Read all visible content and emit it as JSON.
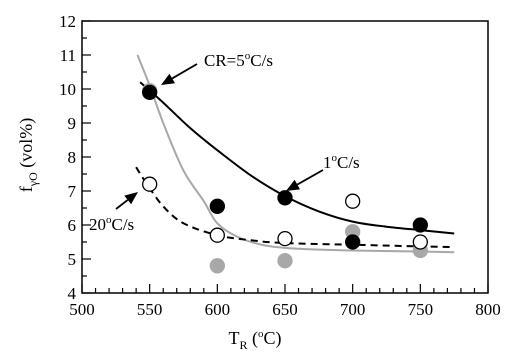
{
  "chart_data": {
    "type": "scatter",
    "xlim": [
      500,
      800
    ],
    "ylim": [
      4,
      12
    ],
    "x_ticks": [
      500,
      550,
      600,
      650,
      700,
      750,
      800
    ],
    "y_ticks": [
      4,
      5,
      6,
      7,
      8,
      9,
      10,
      11,
      12
    ],
    "x_minor_step": 10,
    "y_minor_step": 0.5,
    "xlabel": {
      "main": "T",
      "sub": "R",
      "unit_pre": " (",
      "unit_sup": "o",
      "unit_post": "C)"
    },
    "ylabel": {
      "main": "f",
      "sub": "γO",
      "unit": " (vol%)"
    },
    "grid": false,
    "legend": "none",
    "series": [
      {
        "annotation": {
          "pre": "CR=5",
          "sup": "o",
          "post": "C/s"
        },
        "marker": "filled-black",
        "line_style": "solid-black",
        "points": [
          [
            550,
            9.9
          ],
          [
            600,
            6.55
          ],
          [
            650,
            6.8
          ],
          [
            700,
            5.5
          ],
          [
            750,
            6.0
          ]
        ],
        "fit": [
          [
            543,
            10.2
          ],
          [
            560,
            9.6
          ],
          [
            580,
            8.85
          ],
          [
            600,
            8.2
          ],
          [
            625,
            7.45
          ],
          [
            650,
            6.85
          ],
          [
            675,
            6.4
          ],
          [
            700,
            6.1
          ],
          [
            725,
            5.95
          ],
          [
            750,
            5.85
          ],
          [
            775,
            5.75
          ]
        ]
      },
      {
        "annotation": {
          "pre": "1",
          "sup": "o",
          "post": "C/s"
        },
        "marker": "open-circle",
        "line_style": "dashed-black",
        "points": [
          [
            550,
            7.2
          ],
          [
            600,
            5.7
          ],
          [
            650,
            5.6
          ],
          [
            700,
            6.7
          ],
          [
            750,
            5.5
          ]
        ],
        "fit": [
          [
            540,
            7.7
          ],
          [
            548,
            7.2
          ],
          [
            560,
            6.55
          ],
          [
            575,
            6.05
          ],
          [
            600,
            5.7
          ],
          [
            625,
            5.55
          ],
          [
            650,
            5.47
          ],
          [
            700,
            5.42
          ],
          [
            750,
            5.37
          ],
          [
            775,
            5.35
          ]
        ]
      },
      {
        "annotation": {
          "pre": "20",
          "sup": "o",
          "post": "C/s"
        },
        "marker": "filled-gray",
        "line_style": "solid-gray",
        "points": [
          [
            550,
            9.95
          ],
          [
            600,
            4.8
          ],
          [
            650,
            4.95
          ],
          [
            700,
            5.8
          ],
          [
            750,
            5.25
          ]
        ],
        "fit": [
          [
            541,
            11.0
          ],
          [
            550,
            10.1
          ],
          [
            560,
            9.0
          ],
          [
            575,
            7.6
          ],
          [
            590,
            6.7
          ],
          [
            600,
            6.05
          ],
          [
            615,
            5.65
          ],
          [
            635,
            5.4
          ],
          [
            660,
            5.3
          ],
          [
            700,
            5.25
          ],
          [
            750,
            5.22
          ],
          [
            775,
            5.2
          ]
        ]
      }
    ]
  }
}
